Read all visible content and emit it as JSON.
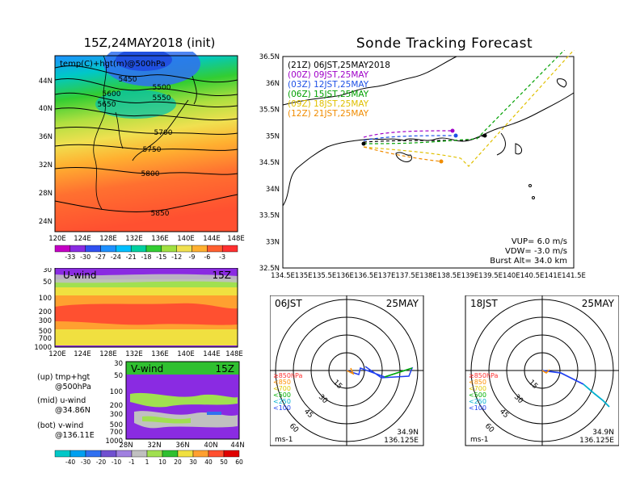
{
  "header": {
    "left_title": "15Z,24MAY2018 (init)",
    "right_title": "Sonde Tracking Forecast"
  },
  "map500": {
    "label": "temp(C)+hgt(m)@500hPa",
    "lat_labels": [
      "44N",
      "40N",
      "36N",
      "32N",
      "28N",
      "24N"
    ],
    "lon_labels": [
      "120E",
      "124E",
      "128E",
      "132E",
      "136E",
      "140E",
      "144E",
      "148E"
    ],
    "contour_labels": [
      "5450",
      "5500",
      "5550",
      "5600",
      "5650",
      "5700",
      "5750",
      "5800",
      "5850"
    ],
    "colorbar_labels": [
      "-33",
      "-30",
      "-27",
      "-24",
      "-21",
      "-18",
      "-15",
      "-12",
      "-9",
      "-6",
      "-3"
    ],
    "colorbar_colors": [
      "#c400c4",
      "#8a2be2",
      "#3050f0",
      "#1e90ff",
      "#00bfff",
      "#00d0a0",
      "#32cd32",
      "#a0e040",
      "#f0e050",
      "#ffb030",
      "#ff6030",
      "#ff3030"
    ]
  },
  "uwind": {
    "title": "U-wind",
    "time": "15Z",
    "y_labels": [
      "30",
      "50",
      "100",
      "200",
      "300",
      "500",
      "700",
      "1000"
    ],
    "x_labels": [
      "120E",
      "124E",
      "128E",
      "132E",
      "136E",
      "140E",
      "144E",
      "148E"
    ]
  },
  "vwind": {
    "title": "V-wind",
    "time": "15Z",
    "y_labels": [
      "30",
      "50",
      "100",
      "200",
      "300",
      "500",
      "700",
      "1000"
    ],
    "x_labels": [
      "28N",
      "32N",
      "36N",
      "40N",
      "44N"
    ]
  },
  "captions": {
    "up_line1": "(up) tmp+hgt",
    "up_line2": "@500hPa",
    "mid_line1": "(mid) u-wind",
    "mid_line2": "@34.86N",
    "bot_line1": "(bot) v-wind",
    "bot_line2": "@136.11E"
  },
  "wind_colorbar": {
    "labels": [
      "-40",
      "-30",
      "-20",
      "-10",
      "-1",
      "1",
      "10",
      "20",
      "30",
      "40",
      "50",
      "60"
    ],
    "colors": [
      "#00c8c8",
      "#00a0f0",
      "#3070f0",
      "#7050d0",
      "#a080e0",
      "#c0c0c0",
      "#a0e050",
      "#30c030",
      "#f0e040",
      "#ffa030",
      "#ff5030",
      "#e00000"
    ]
  },
  "tracking": {
    "lat_labels": [
      "36.5N",
      "36N",
      "35.5N",
      "35N",
      "34.5N",
      "34N",
      "33.5N",
      "33N",
      "32.5N"
    ],
    "lon_labels": [
      "134.5E",
      "135E",
      "135.5E",
      "136E",
      "136.5E",
      "137E",
      "137.5E",
      "138E",
      "138.5E",
      "139E",
      "139.5E",
      "140E",
      "140.5E",
      "141E",
      "141.5E"
    ],
    "legend": [
      {
        "text": "(21Z)  06JST,25MAY2018",
        "color": "#000000"
      },
      {
        "text": "(00Z)  09JST,25MAY",
        "color": "#a000c8"
      },
      {
        "text": "(03Z)  12JST,25MAY",
        "color": "#1e50e6"
      },
      {
        "text": "(06Z)  15JST,25MAY",
        "color": "#00a000"
      },
      {
        "text": "(09Z)  18JST,25MAY",
        "color": "#e0c000"
      },
      {
        "text": "(12Z)  21JST,25MAY",
        "color": "#f08c00"
      }
    ],
    "vup": "VUP=  6.0  m/s",
    "vdw": "VDW=  -3.0  m/s",
    "burst": "Burst Alt=  34.0  km"
  },
  "hodo_left": {
    "time": "06JST",
    "date": "25MAY",
    "ring_labels": [
      "15",
      "30",
      "45",
      "60"
    ],
    "levels": [
      {
        "text": "≥850hPa",
        "color": "#ff3030"
      },
      {
        "text": "<850",
        "color": "#ff9000"
      },
      {
        "text": "<700",
        "color": "#e0c800"
      },
      {
        "text": "<500",
        "color": "#00b000"
      },
      {
        "text": "<250",
        "color": "#00b0d0"
      },
      {
        "text": "<100",
        "color": "#2040f0"
      }
    ],
    "unit": "ms-1",
    "lat": "34.9N",
    "lon": "136.125E"
  },
  "hodo_right": {
    "time": "18JST",
    "date": "25MAY",
    "ring_labels": [
      "15",
      "30",
      "45",
      "60"
    ],
    "levels": [
      {
        "text": "≥850hPa",
        "color": "#ff3030"
      },
      {
        "text": "<850",
        "color": "#ff9000"
      },
      {
        "text": "<700",
        "color": "#e0c800"
      },
      {
        "text": "<500",
        "color": "#00b000"
      },
      {
        "text": "<250",
        "color": "#00b0d0"
      },
      {
        "text": "<100",
        "color": "#2040f0"
      }
    ],
    "unit": "ms-1",
    "lat": "34.9N",
    "lon": "136.125E"
  }
}
